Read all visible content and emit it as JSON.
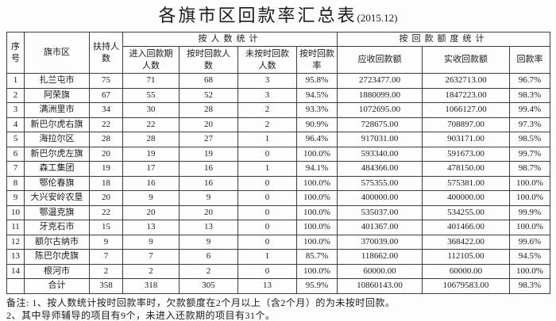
{
  "title": "各旗市区回款率汇总表",
  "title_suffix": "(2015.12)",
  "table": {
    "headers": {
      "col_no": "序\n号",
      "col_region": "旗市区",
      "col_supported": "扶持人\n数",
      "group_people": "按人数统计",
      "col_entered": "进入回款期\n人数",
      "col_ontime": "按时回款人\n数",
      "col_late": "未按时回款\n人数",
      "col_ontime_rate": "按时回款\n率",
      "group_amount": "按回款额度统计",
      "col_receivable": "应收回款额",
      "col_received": "实收回款额",
      "col_rate": "回款率"
    },
    "rows": [
      [
        "1",
        "扎兰屯市",
        "75",
        "71",
        "68",
        "3",
        "95.8%",
        "2723477.00",
        "2632713.00",
        "96.7%"
      ],
      [
        "2",
        "阿荣旗",
        "67",
        "55",
        "52",
        "3",
        "94.5%",
        "1880099.00",
        "1847223.00",
        "98.3%"
      ],
      [
        "3",
        "满洲里市",
        "34",
        "30",
        "28",
        "2",
        "93.3%",
        "1072695.00",
        "1066127.00",
        "99.4%"
      ],
      [
        "4",
        "新巴尔虎右旗",
        "22",
        "22",
        "20",
        "2",
        "90.9%",
        "728675.00",
        "708897.00",
        "97.3%"
      ],
      [
        "5",
        "海拉尔区",
        "28",
        "28",
        "27",
        "1",
        "96.4%",
        "917031.00",
        "903171.00",
        "98.5%"
      ],
      [
        "6",
        "新巴尔虎左旗",
        "20",
        "19",
        "19",
        "0",
        "100.0%",
        "593340.00",
        "591673.00",
        "99.7%"
      ],
      [
        "7",
        "森工集团",
        "19",
        "17",
        "16",
        "1",
        "94.1%",
        "484366.00",
        "478150.00",
        "98.7%"
      ],
      [
        "8",
        "鄂伦春旗",
        "18",
        "16",
        "16",
        "0",
        "100.0%",
        "575355.00",
        "575381.00",
        "100.0%"
      ],
      [
        "9",
        "大兴安岭农垦",
        "20",
        "9",
        "9",
        "0",
        "100.0%",
        "400000.00",
        "400000.00",
        "100.0%"
      ],
      [
        "10",
        "鄂温克旗",
        "22",
        "20",
        "20",
        "0",
        "100.0%",
        "535037.00",
        "534255.00",
        "99.9%"
      ],
      [
        "11",
        "牙克石市",
        "15",
        "13",
        "13",
        "0",
        "100.0%",
        "401367.00",
        "401466.00",
        "100.0%"
      ],
      [
        "12",
        "额尔古纳市",
        "9",
        "9",
        "9",
        "0",
        "100.0%",
        "370039.00",
        "368422.00",
        "99.6%"
      ],
      [
        "13",
        "陈巴尔虎旗",
        "7",
        "7",
        "6",
        "1",
        "85.7%",
        "118662.00",
        "112105.00",
        "94.5%"
      ],
      [
        "14",
        "根河市",
        "2",
        "2",
        "2",
        "0",
        "100.0%",
        "60000.00",
        "60000.00",
        "100.0%"
      ]
    ],
    "total_row": [
      "",
      "合计",
      "358",
      "318",
      "305",
      "13",
      "95.9%",
      "10860143.00",
      "10679583.00",
      "98.3%"
    ]
  },
  "notes": [
    "备注: 1、按人数统计按时回款率时，欠款额度在2个月以上（含2个月）的为未按时回款。",
    "2、其中导师辅导的项目有9个，未进入还款期的项目有31个。"
  ]
}
